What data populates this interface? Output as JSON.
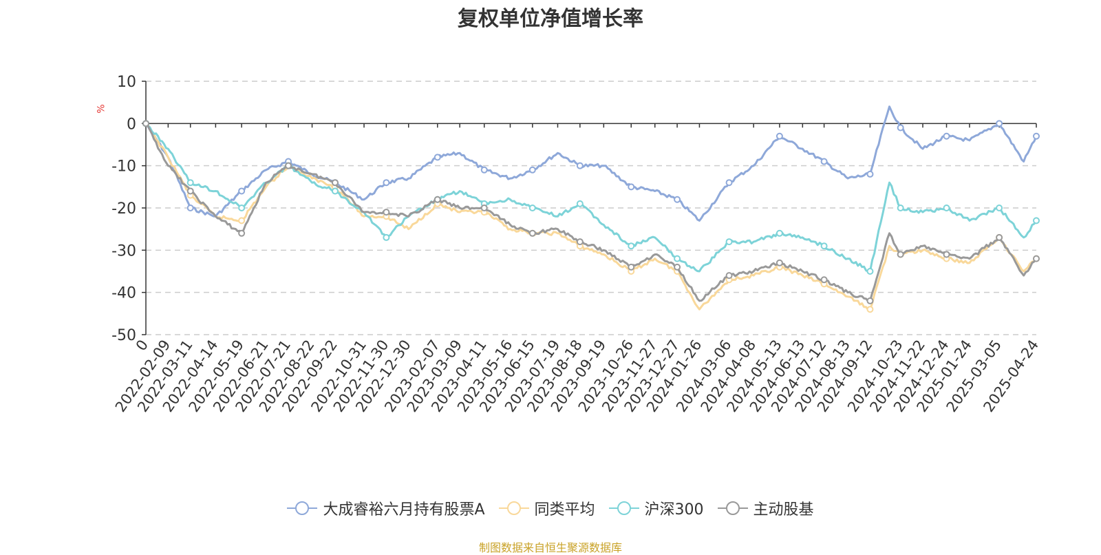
{
  "colors": {
    "fund": "#8ea8d9",
    "peer_avg": "#f9d89a",
    "csi300": "#7dd3d8",
    "active_equity": "#999999",
    "source_text": "#c9a227",
    "unit_label": "#e53935"
  },
  "chart_data": {
    "type": "line",
    "title": "复权单位净值增长率",
    "ylabel": "%",
    "ylim": [
      -50,
      10
    ],
    "yticks": [
      10,
      0,
      -10,
      -20,
      -30,
      -40,
      -50
    ],
    "grid": true,
    "legend_position": "bottom",
    "x_tick_labels": [
      "0",
      "2022-02-09",
      "2022-03-11",
      "2022-04-14",
      "2022-05-19",
      "2022-06-21",
      "2022-07-21",
      "2022-08-22",
      "2022-09-22",
      "2022-10-31",
      "2022-11-30",
      "2022-12-30",
      "2023-02-07",
      "2023-03-09",
      "2023-04-11",
      "2023-05-16",
      "2023-06-15",
      "2023-07-19",
      "2023-08-18",
      "2023-09-19",
      "2023-10-26",
      "2023-11-27",
      "2023-12-27",
      "2024-01-26",
      "2024-03-06",
      "2024-04-08",
      "2024-05-13",
      "2024-06-13",
      "2024-07-12",
      "2024-08-13",
      "2024-09-12",
      "2024-10-23",
      "2024-11-22",
      "2024-12-24",
      "2025-01-24",
      "2025-03-05",
      "2025-04-24"
    ],
    "x": [
      "0",
      "2022-02-09",
      "2022-03-11",
      "2022-04-14",
      "2022-05-19",
      "2022-06-21",
      "2022-07-21",
      "2022-08-22",
      "2022-09-22",
      "2022-10-31",
      "2022-11-30",
      "2022-12-30",
      "2023-02-07",
      "2023-03-09",
      "2023-04-11",
      "2023-05-16",
      "2023-06-15",
      "2023-07-19",
      "2023-08-18",
      "2023-09-19",
      "2023-10-26",
      "2023-11-27",
      "2023-12-27",
      "2024-01-26",
      "2024-03-06",
      "2024-04-08",
      "2024-05-13",
      "2024-06-13",
      "2024-07-12",
      "2024-08-13",
      "2024-09-12",
      "2024-10-08",
      "2024-10-23",
      "2024-11-22",
      "2024-12-24",
      "2025-01-24",
      "2025-03-05",
      "2025-04-07",
      "2025-04-24"
    ],
    "series": [
      {
        "name": "大成睿裕六月持有股票A",
        "color_key": "fund",
        "values": [
          0,
          -8,
          -20,
          -22,
          -16,
          -11,
          -9,
          -12,
          -14,
          -18,
          -14,
          -13,
          -8,
          -7,
          -11,
          -13,
          -11,
          -7,
          -10,
          -10,
          -15,
          -16,
          -18,
          -23,
          -14,
          -10,
          -3,
          -6,
          -9,
          -13,
          -12,
          4,
          -1,
          -6,
          -3,
          -4,
          0,
          -9,
          -3
        ]
      },
      {
        "name": "同类平均",
        "color_key": "peer_avg",
        "values": [
          0,
          -8,
          -17,
          -22,
          -23,
          -15,
          -10,
          -13,
          -15,
          -22,
          -22,
          -25,
          -19,
          -21,
          -21,
          -25,
          -26,
          -26,
          -29,
          -31,
          -35,
          -32,
          -35,
          -44,
          -37,
          -36,
          -34,
          -36,
          -38,
          -41,
          -44,
          -29,
          -31,
          -30,
          -32,
          -33,
          -27,
          -35,
          -32
        ]
      },
      {
        "name": "沪深300",
        "color_key": "csi300",
        "values": [
          0,
          -6,
          -14,
          -16,
          -20,
          -14,
          -10,
          -14,
          -16,
          -21,
          -27,
          -22,
          -18,
          -16,
          -19,
          -18,
          -20,
          -22,
          -19,
          -24,
          -29,
          -27,
          -32,
          -35,
          -28,
          -28,
          -26,
          -27,
          -29,
          -32,
          -35,
          -14,
          -20,
          -21,
          -20,
          -23,
          -20,
          -27,
          -23
        ]
      },
      {
        "name": "主动股基",
        "color_key": "active_equity",
        "values": [
          0,
          -10,
          -16,
          -22,
          -26,
          -14,
          -10,
          -12,
          -14,
          -21,
          -21,
          -22,
          -18,
          -20,
          -20,
          -24,
          -26,
          -25,
          -28,
          -30,
          -34,
          -31,
          -34,
          -42,
          -36,
          -35,
          -33,
          -35,
          -37,
          -40,
          -42,
          -26,
          -31,
          -29,
          -31,
          -32,
          -27,
          -36,
          -32
        ]
      }
    ]
  },
  "legend": {
    "items": [
      {
        "label": "大成睿裕六月持有股票A",
        "color_key": "fund"
      },
      {
        "label": "同类平均",
        "color_key": "peer_avg"
      },
      {
        "label": "沪深300",
        "color_key": "csi300"
      },
      {
        "label": "主动股基",
        "color_key": "active_equity"
      }
    ]
  },
  "source_text": "制图数据来自恒生聚源数据库"
}
